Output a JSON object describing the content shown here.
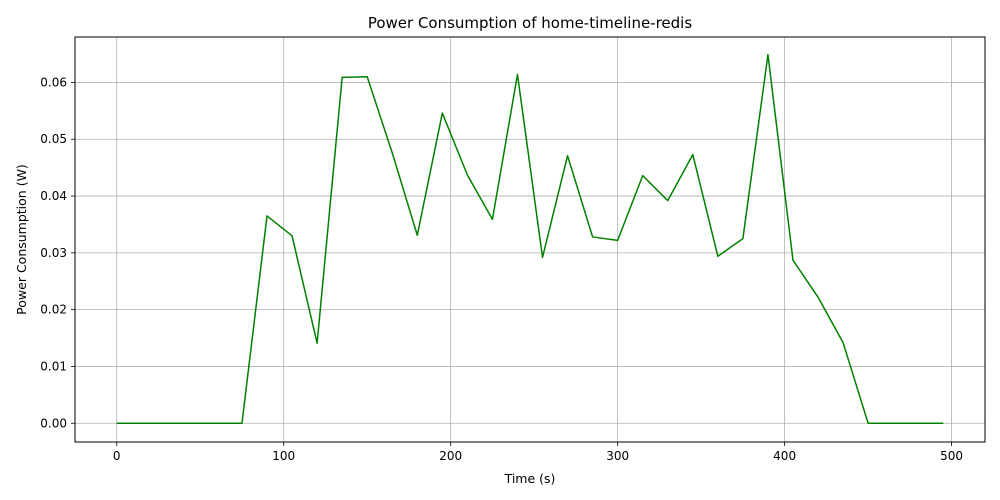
{
  "chart_data": {
    "type": "line",
    "title": "Power Consumption of home-timeline-redis",
    "xlabel": "Time (s)",
    "ylabel": "Power Consumption (W)",
    "xlim": [
      -25,
      520
    ],
    "ylim": [
      -0.0033,
      0.068
    ],
    "xticks": [
      0,
      100,
      200,
      300,
      400,
      500
    ],
    "yticks": [
      0.0,
      0.01,
      0.02,
      0.03,
      0.04,
      0.05,
      0.06
    ],
    "x_tick_labels": [
      "0",
      "100",
      "200",
      "300",
      "400",
      "500"
    ],
    "y_tick_labels": [
      "0.00",
      "0.01",
      "0.02",
      "0.03",
      "0.04",
      "0.05",
      "0.06"
    ],
    "grid": true,
    "series": [
      {
        "color": "#008000",
        "x": [
          0,
          15,
          30,
          45,
          60,
          75,
          90,
          105,
          120,
          135,
          150,
          165,
          180,
          195,
          210,
          225,
          240,
          255,
          270,
          285,
          300,
          315,
          330,
          345,
          360,
          375,
          390,
          405,
          420,
          435,
          450,
          465,
          480,
          495
        ],
        "y": [
          0,
          0,
          0,
          0,
          0,
          0,
          0.0365,
          0.033,
          0.0141,
          0.0609,
          0.061,
          0.0476,
          0.0331,
          0.0546,
          0.0437,
          0.0359,
          0.0614,
          0.0292,
          0.0471,
          0.0328,
          0.0322,
          0.0436,
          0.0392,
          0.0473,
          0.0294,
          0.0325,
          0.0649,
          0.0287,
          0.0222,
          0.0142,
          0,
          0,
          0,
          0
        ]
      }
    ]
  }
}
